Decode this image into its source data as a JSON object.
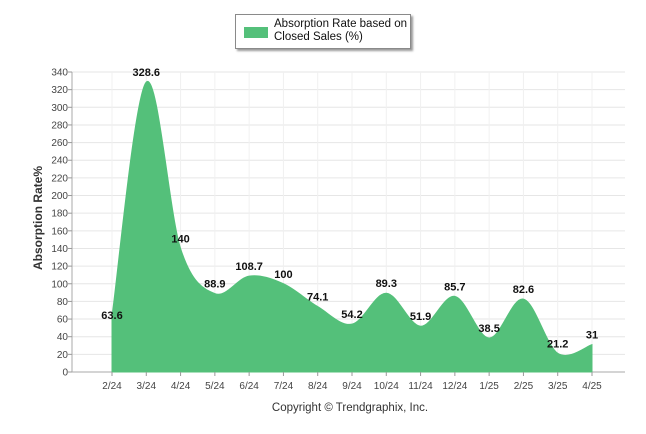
{
  "chart_data": {
    "type": "area",
    "categories": [
      "2/24",
      "3/24",
      "4/24",
      "5/24",
      "6/24",
      "7/24",
      "8/24",
      "9/24",
      "10/24",
      "11/24",
      "12/24",
      "1/25",
      "2/25",
      "3/25",
      "4/25"
    ],
    "series": [
      {
        "name": "Absorption Rate based on Closed Sales (%)",
        "values": [
          63.6,
          328.6,
          140,
          88.9,
          108.7,
          100,
          74.1,
          54.2,
          89.3,
          51.9,
          85.7,
          38.5,
          82.6,
          21.2,
          31
        ],
        "data_labels": [
          "63.6",
          "328.6",
          "140",
          "88.9",
          "108.7",
          "100",
          "74.1",
          "54.2",
          "89.3",
          "51.9",
          "85.7",
          "38.5",
          "82.6",
          "21.2",
          "31"
        ]
      }
    ],
    "ylabel": "Absorption Rate%",
    "xlabel": "",
    "ylim": [
      0,
      340
    ],
    "yticks": [
      0,
      20,
      40,
      60,
      80,
      100,
      120,
      140,
      160,
      180,
      200,
      220,
      240,
      260,
      280,
      300,
      320,
      340
    ],
    "grid": true,
    "legend_position": "top-center",
    "color": "#54c07a"
  },
  "legend": {
    "label": "Absorption Rate based on Closed Sales (%)"
  },
  "footer": {
    "copyright": "Copyright © Trendgraphix, Inc."
  }
}
